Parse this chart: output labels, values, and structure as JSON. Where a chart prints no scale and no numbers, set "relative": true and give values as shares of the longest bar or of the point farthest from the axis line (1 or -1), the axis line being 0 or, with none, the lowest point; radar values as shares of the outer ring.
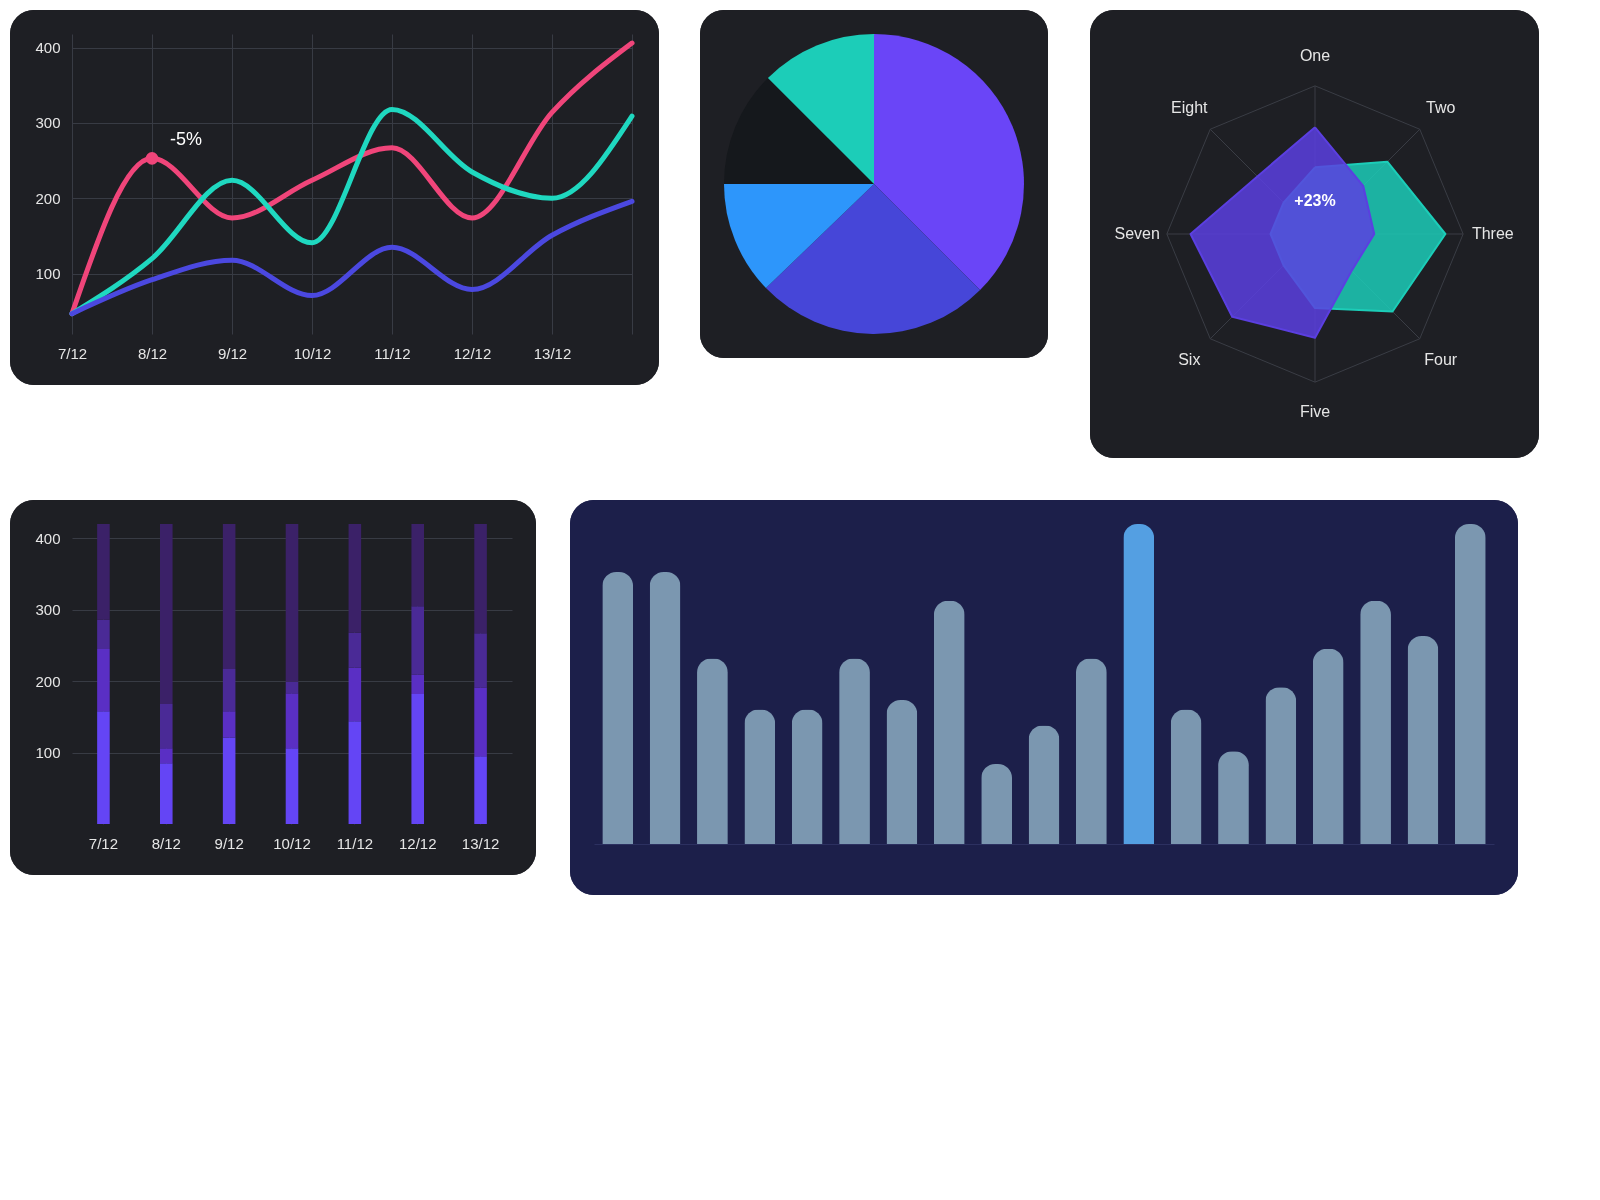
{
  "chart_data": [
    {
      "type": "line",
      "categories": [
        "7/12",
        "8/12",
        "9/12",
        "10/12",
        "11/12",
        "12/12",
        "13/12",
        null
      ],
      "series": [
        {
          "color": "#f0457a",
          "values": [
            47,
            253,
            174,
            224,
            267,
            174,
            314,
            406
          ]
        },
        {
          "color": "#1fd8c0",
          "values": [
            47,
            120,
            224,
            141,
            318,
            235,
            200,
            309
          ]
        },
        {
          "color": "#4b48e0",
          "values": [
            47,
            92,
            118,
            71,
            135,
            79,
            151,
            196
          ]
        }
      ],
      "ylim": [
        20,
        418
      ],
      "yticks": [
        100,
        200,
        300,
        400
      ],
      "grid": true,
      "annotations": [
        {
          "text": "-5%",
          "x": "8/12",
          "y": 253
        }
      ]
    },
    {
      "type": "pie",
      "categories": [
        null,
        null,
        null,
        null,
        null
      ],
      "values": [
        37.5,
        25.3,
        12.2,
        12.5,
        12.5
      ],
      "colors": [
        "#6a45f7",
        "#4646d8",
        "#2d96fb",
        "#15181c",
        "#1ccdb8"
      ]
    },
    {
      "type": "bar",
      "relative": true,
      "categories": [
        null,
        null,
        null,
        null,
        null,
        null,
        null,
        null,
        null,
        null,
        null,
        null,
        null,
        null,
        null,
        null,
        null,
        null,
        null
      ],
      "values": [
        0.85,
        0.85,
        0.58,
        0.42,
        0.42,
        0.58,
        0.45,
        0.76,
        0.25,
        0.37,
        0.58,
        1,
        0.42,
        0.29,
        0.49,
        0.61,
        0.76,
        0.65,
        1
      ],
      "colors": [
        "#7b97b0",
        "#7b97b0",
        "#7b97b0",
        "#7b97b0",
        "#7b97b0",
        "#7b97b0",
        "#7b97b0",
        "#7b97b0",
        "#7b97b0",
        "#7b97b0",
        "#7b97b0",
        "#549fe2",
        "#7b97b0",
        "#7b97b0",
        "#7b97b0",
        "#7b97b0",
        "#7b97b0",
        "#7b97b0",
        "#7b97b0"
      ]
    },
    {
      "type": "radar",
      "relative": true,
      "categories": [
        "One",
        "Two",
        "Three",
        "Four",
        "Five",
        "Six",
        "Seven",
        "Eight"
      ],
      "series": [
        {
          "color": "#1ccdb8",
          "values": [
            0.45,
            0.69,
            0.88,
            0.74,
            0.5,
            0.3,
            0.3,
            0.3
          ]
        },
        {
          "color": "#5b3fe0",
          "values": [
            0.72,
            0.46,
            0.4,
            0.35,
            0.7,
            0.79,
            0.84,
            0.55
          ]
        }
      ],
      "annotations": [
        "+23%"
      ]
    },
    {
      "type": "bar",
      "stacked": true,
      "categories": [
        "7/12",
        "8/12",
        "9/12",
        "10/12",
        "11/12",
        "12/12",
        "13/12"
      ],
      "series": [
        {
          "color": "#6445f5",
          "values": [
            158,
            85,
            121,
            106,
            144,
            182,
            95
          ]
        },
        {
          "color": "#5a2fc4",
          "values": [
            87,
            21,
            37,
            77,
            75,
            27,
            96
          ]
        },
        {
          "color": "#4a2a96",
          "values": [
            41,
            62,
            59,
            16,
            49,
            96,
            76
          ]
        },
        {
          "color": "#3b2168",
          "values": [
            134,
            252,
            203,
            221,
            152,
            115,
            153
          ]
        }
      ],
      "ylim": [
        0,
        420
      ],
      "yticks": [
        100,
        200,
        300,
        400
      ],
      "grid": true
    }
  ]
}
